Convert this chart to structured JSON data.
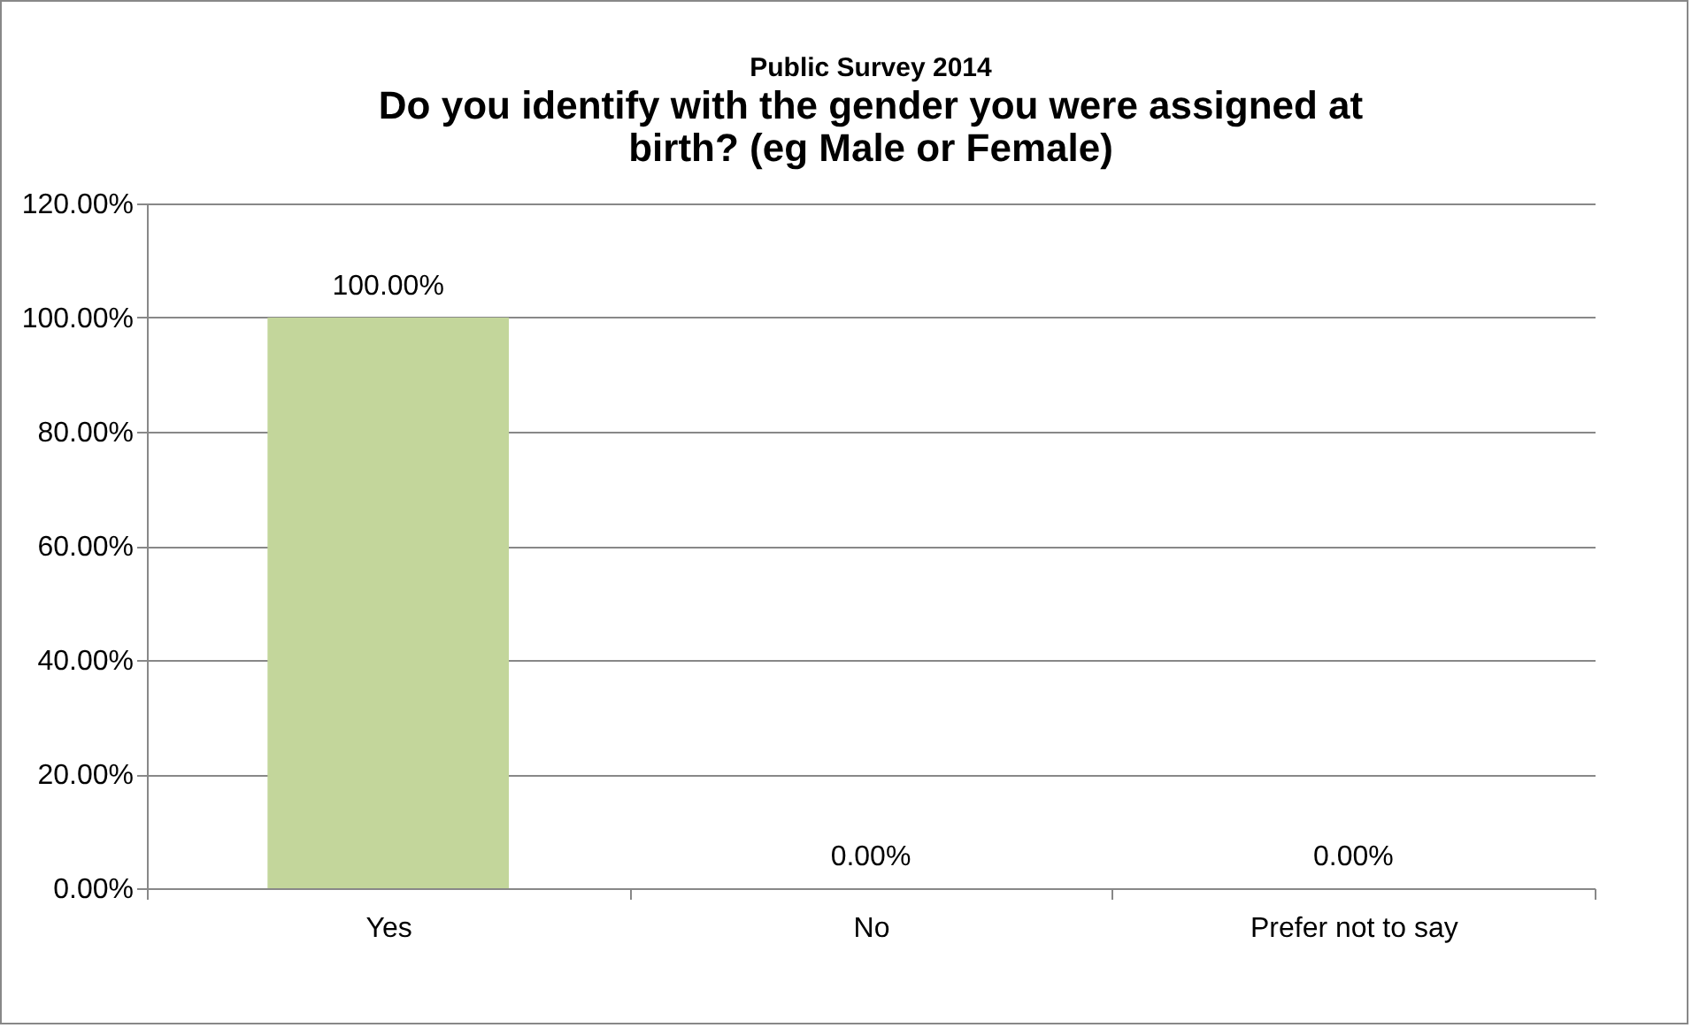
{
  "chart_data": {
    "type": "bar",
    "title": "Public Survey 2014",
    "subtitle": "Do you identify with the gender you were assigned at birth? (eg Male or Female)",
    "categories": [
      "Yes",
      "No",
      "Prefer not to say"
    ],
    "values": [
      100,
      0,
      0
    ],
    "value_labels": [
      "100.00%",
      "0.00%",
      "0.00%"
    ],
    "color": "#c3d69b",
    "ylim": [
      0,
      120
    ],
    "yticks": [
      {
        "value": 0,
        "label": "0.00%"
      },
      {
        "value": 20,
        "label": "20.00%"
      },
      {
        "value": 40,
        "label": "40.00%"
      },
      {
        "value": 60,
        "label": "60.00%"
      },
      {
        "value": 80,
        "label": "80.00%"
      },
      {
        "value": 100,
        "label": "100.00%"
      },
      {
        "value": 120,
        "label": "120.00%"
      }
    ],
    "grid": "y"
  }
}
